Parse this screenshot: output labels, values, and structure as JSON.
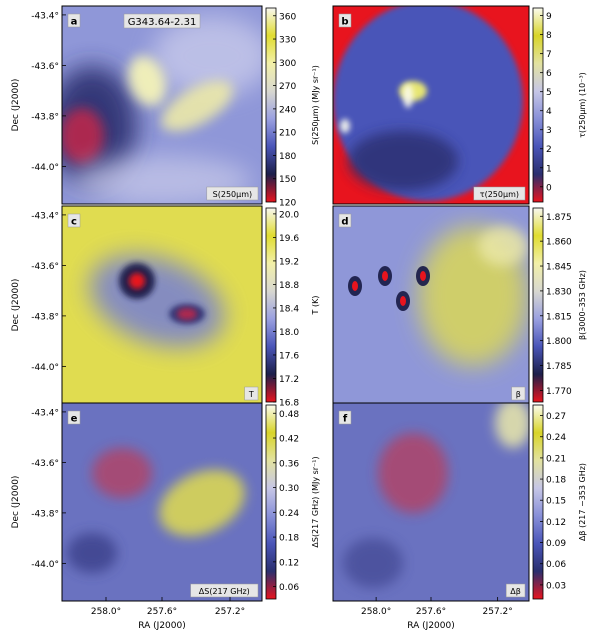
{
  "gradients": {
    "cool_warm": [
      "#e8141e",
      "#1c1f4a",
      "#4a55b8",
      "#9aa0e0",
      "#d8d8d0",
      "#f2f0a8",
      "#e0dc30",
      "#f8f8f0"
    ],
    "red_low": [
      "#e8141e",
      "#2a2f6e",
      "#4a55b8",
      "#8890d8",
      "#c6c6e6",
      "#e2e2a0",
      "#d8d428",
      "#fbfbef"
    ]
  },
  "chart_data": [
    {
      "type": "heatmap",
      "panel": "a",
      "title": "G343.64-2.31",
      "corner_label": "S(250μm)",
      "ylabel": "Dec (J2000)",
      "xlabel": "",
      "y_ticks": [
        "-43.4°",
        "-43.6°",
        "-43.8°",
        "-44.0°"
      ],
      "x_ticks": [],
      "colorbar": {
        "label": "S(250μm) (MJy sr⁻¹)",
        "range": [
          120,
          370
        ],
        "ticks": [
          "120",
          "150",
          "180",
          "210",
          "240",
          "270",
          "300",
          "330",
          "360"
        ]
      }
    },
    {
      "type": "heatmap",
      "panel": "b",
      "title": "",
      "corner_label": "τ(250μm)",
      "ylabel": "",
      "xlabel": "",
      "y_ticks": [],
      "x_ticks": [],
      "colorbar": {
        "label": "τ(250μm) (10⁻³)",
        "range": [
          -0.8,
          9.4
        ],
        "ticks": [
          "0",
          "1",
          "2",
          "3",
          "4",
          "5",
          "6",
          "7",
          "8",
          "9"
        ]
      }
    },
    {
      "type": "heatmap",
      "panel": "c",
      "title": "",
      "corner_label": "T",
      "ylabel": "Dec (J2000)",
      "xlabel": "",
      "y_ticks": [
        "-43.4°",
        "-43.6°",
        "-43.8°",
        "-44.0°"
      ],
      "x_ticks": [],
      "colorbar": {
        "label": "T (K)",
        "range": [
          16.8,
          20.1
        ],
        "ticks": [
          "16.8",
          "17.2",
          "17.6",
          "18.0",
          "18.4",
          "18.8",
          "19.2",
          "19.6",
          "20.0"
        ]
      }
    },
    {
      "type": "heatmap",
      "panel": "d",
      "title": "",
      "corner_label": "β",
      "ylabel": "",
      "xlabel": "",
      "y_ticks": [],
      "x_ticks": [],
      "colorbar": {
        "label": "β(3000–353 GHz)",
        "range": [
          1.763,
          1.88
        ],
        "ticks": [
          "1.770",
          "1.785",
          "1.800",
          "1.815",
          "1.830",
          "1.845",
          "1.860",
          "1.875"
        ]
      }
    },
    {
      "type": "heatmap",
      "panel": "e",
      "title": "",
      "corner_label": "ΔS(217 GHz)",
      "ylabel": "Dec (J2000)",
      "xlabel": "RA (J2000)",
      "y_ticks": [
        "-43.4°",
        "-43.6°",
        "-43.8°",
        "-44.0°"
      ],
      "x_ticks": [
        "258.0°",
        "257.6°",
        "257.2°"
      ],
      "colorbar": {
        "label": "ΔS(217 GHz) (MJy sr⁻¹)",
        "range": [
          0.03,
          0.5
        ],
        "ticks": [
          "0.06",
          "0.12",
          "0.18",
          "0.24",
          "0.30",
          "0.36",
          "0.42",
          "0.48"
        ]
      }
    },
    {
      "type": "heatmap",
      "panel": "f",
      "title": "",
      "corner_label": "Δβ",
      "ylabel": "",
      "xlabel": "RA (J2000)",
      "y_ticks": [],
      "x_ticks": [
        "258.0°",
        "257.6°",
        "257.2°"
      ],
      "colorbar": {
        "label": "Δβ (217 −353 GHz)",
        "range": [
          0.01,
          0.285
        ],
        "ticks": [
          "0.03",
          "0.06",
          "0.09",
          "0.12",
          "0.15",
          "0.18",
          "0.21",
          "0.24",
          "0.27"
        ]
      }
    }
  ]
}
